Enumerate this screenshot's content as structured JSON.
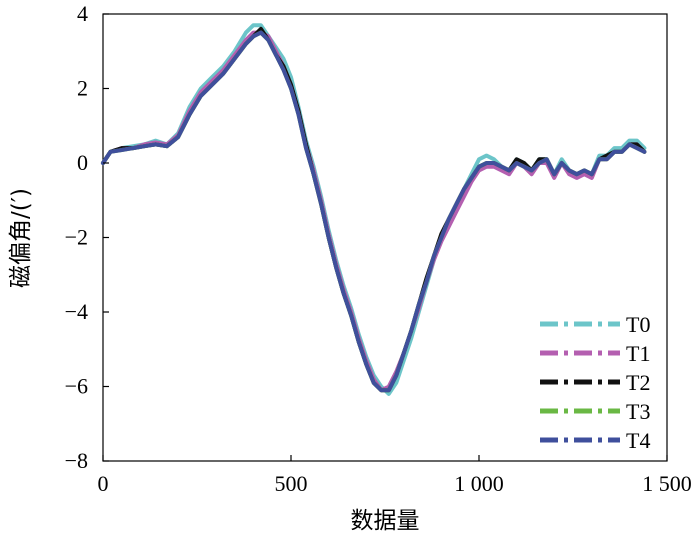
{
  "chart_data": {
    "type": "line",
    "title": "",
    "xlabel": "数据量",
    "ylabel": "磁偏角/(′)",
    "xlim": [
      0,
      1500
    ],
    "ylim": [
      -8,
      4
    ],
    "xticks": [
      0,
      500,
      1000,
      1500
    ],
    "xtick_labels": [
      "0",
      "500",
      "1 000",
      "1 500"
    ],
    "yticks": [
      -8,
      -6,
      -4,
      -2,
      0,
      2,
      4
    ],
    "ytick_labels": [
      "−8",
      "−6",
      "−4",
      "−2",
      "0",
      "2",
      "4"
    ],
    "grid": false,
    "legend_position": "bottom-right",
    "x": [
      0,
      20,
      50,
      80,
      110,
      140,
      170,
      200,
      230,
      260,
      290,
      320,
      350,
      380,
      400,
      420,
      440,
      460,
      480,
      500,
      520,
      540,
      560,
      580,
      600,
      620,
      640,
      660,
      680,
      700,
      720,
      740,
      760,
      780,
      800,
      820,
      840,
      860,
      880,
      900,
      920,
      940,
      960,
      980,
      1000,
      1020,
      1040,
      1060,
      1080,
      1100,
      1120,
      1140,
      1160,
      1180,
      1200,
      1220,
      1240,
      1260,
      1280,
      1300,
      1320,
      1340,
      1360,
      1380,
      1400,
      1420,
      1440
    ],
    "series": [
      {
        "name": "T0",
        "color": "#6cc5c9",
        "values": [
          0.0,
          0.3,
          0.4,
          0.45,
          0.5,
          0.6,
          0.5,
          0.8,
          1.5,
          2.0,
          2.3,
          2.6,
          3.0,
          3.5,
          3.7,
          3.7,
          3.4,
          3.1,
          2.8,
          2.3,
          1.5,
          0.6,
          -0.1,
          -0.9,
          -1.8,
          -2.6,
          -3.3,
          -3.9,
          -4.6,
          -5.2,
          -5.7,
          -6.0,
          -6.2,
          -5.9,
          -5.3,
          -4.7,
          -4.0,
          -3.3,
          -2.6,
          -2.0,
          -1.5,
          -1.1,
          -0.7,
          -0.3,
          0.1,
          0.2,
          0.1,
          -0.1,
          -0.2,
          0.1,
          0.0,
          -0.2,
          0.1,
          0.1,
          -0.3,
          0.1,
          -0.2,
          -0.3,
          -0.2,
          -0.3,
          0.2,
          0.2,
          0.4,
          0.4,
          0.6,
          0.6,
          0.4
        ]
      },
      {
        "name": "T1",
        "color": "#b45fb0",
        "values": [
          0.0,
          0.3,
          0.4,
          0.4,
          0.5,
          0.55,
          0.5,
          0.75,
          1.4,
          1.9,
          2.2,
          2.5,
          2.9,
          3.3,
          3.5,
          3.5,
          3.4,
          3.0,
          2.6,
          2.1,
          1.4,
          0.5,
          -0.2,
          -1.0,
          -1.9,
          -2.7,
          -3.4,
          -4.0,
          -4.7,
          -5.3,
          -5.8,
          -6.1,
          -6.0,
          -5.6,
          -5.1,
          -4.5,
          -3.9,
          -3.2,
          -2.6,
          -2.1,
          -1.7,
          -1.3,
          -0.9,
          -0.5,
          -0.2,
          -0.1,
          -0.1,
          -0.2,
          -0.3,
          0.0,
          -0.1,
          -0.3,
          0.0,
          0.0,
          -0.4,
          0.0,
          -0.3,
          -0.4,
          -0.3,
          -0.4,
          0.1,
          0.1,
          0.3,
          0.3,
          0.5,
          0.5,
          0.3
        ]
      },
      {
        "name": "T2",
        "color": "#111111",
        "values": [
          0.0,
          0.3,
          0.4,
          0.4,
          0.45,
          0.5,
          0.45,
          0.7,
          1.3,
          1.8,
          2.1,
          2.4,
          2.8,
          3.2,
          3.4,
          3.6,
          3.3,
          2.9,
          2.6,
          2.1,
          1.4,
          0.5,
          -0.3,
          -1.1,
          -2.0,
          -2.8,
          -3.5,
          -4.1,
          -4.8,
          -5.4,
          -5.9,
          -6.1,
          -6.1,
          -5.7,
          -5.1,
          -4.5,
          -3.8,
          -3.1,
          -2.5,
          -1.9,
          -1.5,
          -1.1,
          -0.7,
          -0.4,
          -0.1,
          0.0,
          0.0,
          -0.1,
          -0.2,
          0.1,
          0.0,
          -0.2,
          0.1,
          0.1,
          -0.3,
          0.0,
          -0.2,
          -0.3,
          -0.2,
          -0.3,
          0.1,
          0.2,
          0.3,
          0.3,
          0.5,
          0.5,
          0.3
        ]
      },
      {
        "name": "T3",
        "color": "#6ab844",
        "values": [
          0.0,
          0.3,
          0.35,
          0.4,
          0.45,
          0.5,
          0.45,
          0.7,
          1.3,
          1.8,
          2.1,
          2.4,
          2.8,
          3.2,
          3.4,
          3.5,
          3.3,
          2.9,
          2.5,
          2.0,
          1.3,
          0.4,
          -0.3,
          -1.1,
          -2.0,
          -2.8,
          -3.5,
          -4.1,
          -4.8,
          -5.4,
          -5.9,
          -6.1,
          -6.1,
          -5.7,
          -5.1,
          -4.5,
          -3.8,
          -3.2,
          -2.5,
          -2.0,
          -1.5,
          -1.1,
          -0.7,
          -0.4,
          -0.1,
          0.0,
          0.0,
          -0.1,
          -0.2,
          0.0,
          -0.1,
          -0.2,
          0.0,
          0.1,
          -0.3,
          0.0,
          -0.2,
          -0.3,
          -0.2,
          -0.3,
          0.1,
          0.1,
          0.3,
          0.3,
          0.5,
          0.4,
          0.3
        ]
      },
      {
        "name": "T4",
        "color": "#3f4f9c",
        "values": [
          0.0,
          0.3,
          0.35,
          0.4,
          0.45,
          0.5,
          0.45,
          0.7,
          1.3,
          1.8,
          2.1,
          2.4,
          2.8,
          3.2,
          3.4,
          3.5,
          3.3,
          2.9,
          2.5,
          2.0,
          1.3,
          0.4,
          -0.3,
          -1.1,
          -2.0,
          -2.8,
          -3.5,
          -4.1,
          -4.8,
          -5.4,
          -5.9,
          -6.1,
          -6.1,
          -5.7,
          -5.1,
          -4.5,
          -3.8,
          -3.2,
          -2.5,
          -2.0,
          -1.5,
          -1.1,
          -0.7,
          -0.4,
          -0.1,
          0.0,
          0.0,
          -0.1,
          -0.2,
          0.0,
          -0.1,
          -0.2,
          0.0,
          0.1,
          -0.3,
          0.0,
          -0.2,
          -0.3,
          -0.2,
          -0.3,
          0.1,
          0.1,
          0.3,
          0.3,
          0.5,
          0.4,
          0.3
        ]
      }
    ]
  }
}
